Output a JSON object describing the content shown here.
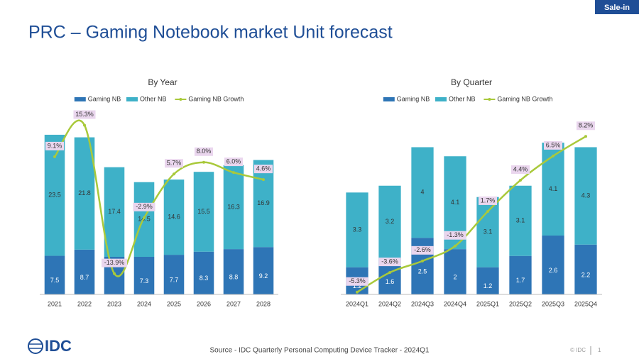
{
  "header": {
    "title": "PRC – Gaming Notebook market Unit forecast",
    "badge": "Sale-in"
  },
  "chart_data": [
    {
      "type": "bar",
      "stacked": true,
      "title": "By Year",
      "legend": "top",
      "categories": [
        "2021",
        "2022",
        "2023",
        "2024",
        "2025",
        "2026",
        "2027",
        "2028"
      ],
      "ylim": [
        0,
        36.5
      ],
      "y2lim": [
        -18,
        19
      ],
      "series": [
        {
          "name": "Gaming NB",
          "color": "#2e75b6",
          "values": [
            7.5,
            8.7,
            7.3,
            7.3,
            7.7,
            8.3,
            8.8,
            9.2
          ],
          "value_labels": [
            "7.5",
            "8.7",
            null,
            "7.3",
            "7.7",
            "8.3",
            "8.8",
            "9.2"
          ]
        },
        {
          "name": "Other NB",
          "color": "#3eb1c8",
          "values": [
            23.5,
            21.8,
            17.4,
            14.5,
            14.6,
            15.5,
            16.3,
            16.9
          ]
        },
        {
          "name": "Gaming NB Growth",
          "color": "#a9c93b",
          "type": "line",
          "axis": "y2",
          "values": [
            9.1,
            15.3,
            -13.9,
            -2.9,
            5.7,
            8.0,
            6.0,
            4.6
          ],
          "value_labels": [
            "9.1%",
            "15.3%",
            "-13.9%",
            "-2.9%",
            "5.7%",
            "8.0%",
            "6.0%",
            "4.6%"
          ]
        }
      ]
    },
    {
      "type": "bar",
      "stacked": true,
      "title": "By Quarter",
      "legend": "top",
      "categories": [
        "2024Q1",
        "2024Q2",
        "2024Q3",
        "2024Q4",
        "2025Q1",
        "2025Q2",
        "2025Q3",
        "2025Q4"
      ],
      "ylim": [
        0,
        8.3
      ],
      "y2lim": [
        -5.5,
        10.8
      ],
      "series": [
        {
          "name": "Gaming NB",
          "color": "#2e75b6",
          "values": [
            1.2,
            1.6,
            2.5,
            2.0,
            1.2,
            1.7,
            2.6,
            2.2
          ]
        },
        {
          "name": "Other NB",
          "color": "#3eb1c8",
          "values": [
            3.3,
            3.2,
            4.0,
            4.1,
            3.1,
            3.1,
            4.1,
            4.3
          ]
        },
        {
          "name": "Gaming NB Growth",
          "color": "#a9c93b",
          "type": "line",
          "axis": "y2",
          "values": [
            -5.3,
            -3.6,
            -2.6,
            -1.3,
            1.7,
            4.4,
            6.5,
            8.2
          ],
          "value_labels": [
            "-5.3%",
            "-3.6%",
            "-2.6%",
            "-1.3%",
            "1.7%",
            "4.4%",
            "6.5%",
            "8.2%"
          ]
        }
      ]
    }
  ],
  "footer": {
    "logo": "IDC",
    "source": "Source - IDC Quarterly Personal Computing Device Tracker - 2024Q1",
    "copyright": "© IDC",
    "page": "1"
  }
}
